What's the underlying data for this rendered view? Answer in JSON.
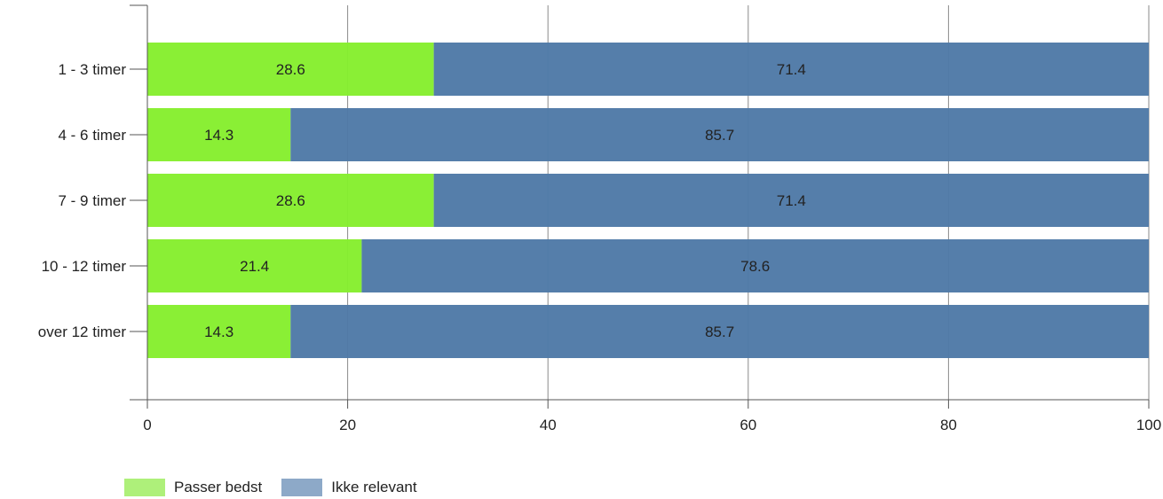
{
  "chart_data": {
    "type": "bar",
    "orientation": "horizontal",
    "stacked": true,
    "categories": [
      "1 - 3 timer",
      "4 - 6 timer",
      "7 - 9 timer",
      "10 - 12 timer",
      "over 12 timer"
    ],
    "series": [
      {
        "name": "Passer bedst",
        "values": [
          28.6,
          14.3,
          28.6,
          21.4,
          14.3
        ],
        "color": "#86ee2e",
        "legend_color": "#aef07a"
      },
      {
        "name": "Ikke relevant",
        "values": [
          71.4,
          85.7,
          71.4,
          78.6,
          85.7
        ],
        "color": "#4f7aa7",
        "legend_color": "#8da9c8"
      }
    ],
    "xlim": [
      0,
      100
    ],
    "xticks": [
      0,
      20,
      40,
      60,
      80,
      100
    ],
    "grid": true,
    "legend_position": "bottom-left",
    "title": "",
    "xlabel": "",
    "ylabel": ""
  }
}
